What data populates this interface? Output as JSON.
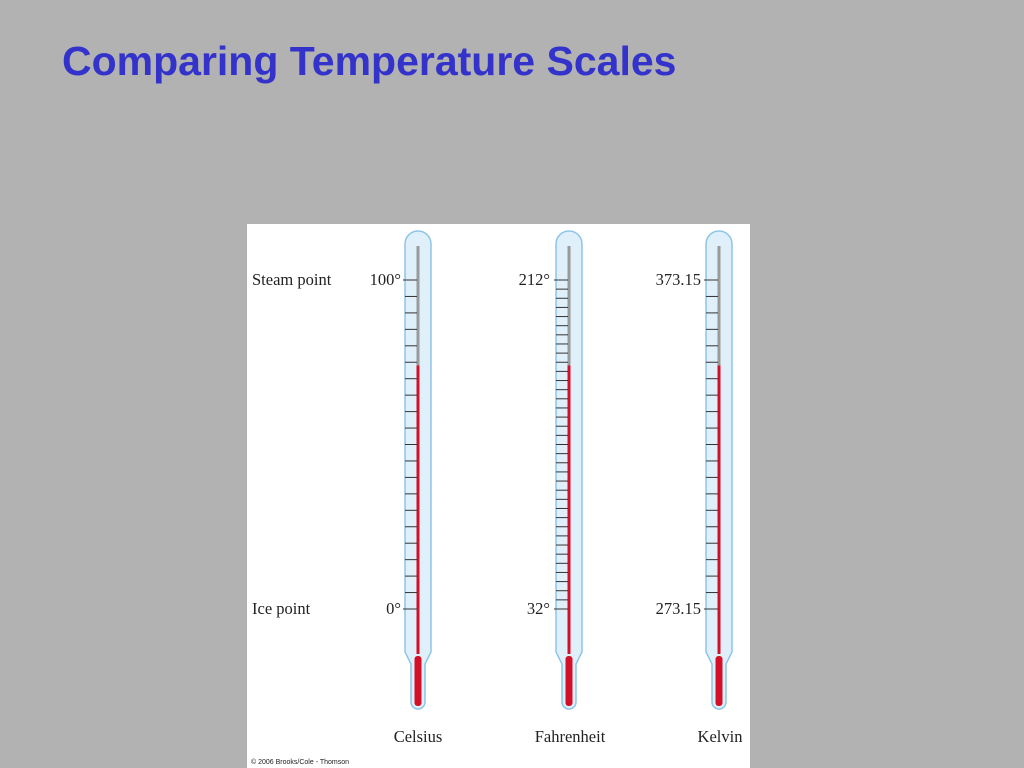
{
  "slide": {
    "title": "Comparing Temperature Scales"
  },
  "figure": {
    "row_labels": {
      "steam": "Steam point",
      "ice": "Ice point"
    },
    "fill_level_fraction_of_range": 0.74,
    "scales": [
      {
        "name": "Celsius",
        "steam_label": "100°",
        "ice_label": "0°",
        "divisions": 20
      },
      {
        "name": "Fahrenheit",
        "steam_label": "212°",
        "ice_label": "32°",
        "divisions": 36
      },
      {
        "name": "Kelvin",
        "steam_label": "373.15",
        "ice_label": "273.15",
        "divisions": 20
      }
    ],
    "colors": {
      "liquid": "#d40f28",
      "empty_capillary": "#9a9a9a",
      "glass": "#dff0fb",
      "glass_outline": "#8ec5e8",
      "tick": "#333333"
    },
    "copyright": "© 2006 Brooks/Cole - Thomson"
  }
}
